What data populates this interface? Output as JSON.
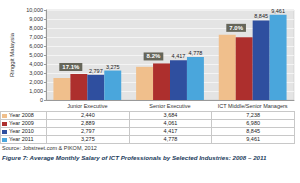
{
  "chart_data": {
    "type": "bar",
    "title": "Figure 7: Average Monthly Salary of ICT Professionals by Selected Industries: 2008 – 2011",
    "source": "Source: Jobstreet.com & PIKOM, 2012",
    "y_label": "Ringgit Malaysia",
    "categories": [
      "Junior Executive",
      "Senior Executive",
      "ICT Middle/Senior Managers"
    ],
    "series": [
      {
        "name": "Year 2008",
        "color": "#f0bf8c",
        "values": [
          2440,
          3684,
          7238
        ],
        "value_labels": [
          "2,440",
          "3,684",
          "7,238"
        ]
      },
      {
        "name": "Year 2009",
        "color": "#ad2f2d",
        "values": [
          2889,
          4061,
          6980
        ],
        "value_labels": [
          "2,889",
          "4,061",
          "6,980"
        ]
      },
      {
        "name": "Year 2010",
        "color": "#2f4f9f",
        "values": [
          2797,
          4417,
          8845
        ],
        "value_labels": [
          "2,797",
          "4,417",
          "8,845"
        ],
        "data_labels": true
      },
      {
        "name": "Year 2011",
        "color": "#4aa6dc",
        "values": [
          3275,
          4778,
          9461
        ],
        "value_labels": [
          "3,275",
          "4,778",
          "9,461"
        ],
        "data_labels": true
      }
    ],
    "annotations": [
      {
        "text": "17.1%",
        "category": "Junior Executive"
      },
      {
        "text": "8.2%",
        "category": "Senior Executive"
      },
      {
        "text": "7.0%",
        "category": "ICT Middle/Senior Managers"
      }
    ],
    "ylim": [
      0,
      10000
    ],
    "yticks": [
      0,
      {
        "value": 1000,
        "label": "1,000"
      },
      {
        "value": 2000,
        "label": "2,000"
      },
      {
        "value": 3000,
        "label": "3,000"
      },
      {
        "value": 4000,
        "label": "4,000"
      },
      {
        "value": 5000,
        "label": "5,000"
      },
      {
        "value": 6000,
        "label": "6,000"
      },
      {
        "value": 7000,
        "label": "7,000"
      },
      {
        "value": 8000,
        "label": "8,000"
      },
      {
        "value": 9000,
        "label": "9,000"
      },
      {
        "value": 10000,
        "label": "10,000"
      }
    ],
    "grid": true
  }
}
